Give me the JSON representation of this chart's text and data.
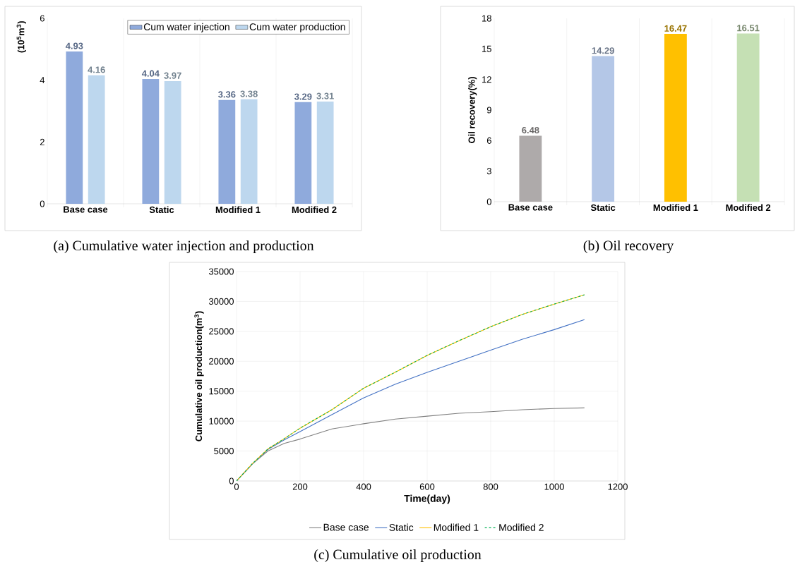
{
  "chart_data": [
    {
      "type": "bar",
      "ylabel": "(10$^{5}$m$^{3}$)",
      "categories": [
        "Base case",
        "Static",
        "Modified 1",
        "Modified 2"
      ],
      "series": [
        {
          "name": "Cum water injection",
          "color": "#8faadc",
          "values": [
            4.93,
            4.04,
            3.36,
            3.29
          ]
        },
        {
          "name": "Cum water production",
          "color": "#bdd7ee",
          "values": [
            4.16,
            3.97,
            3.38,
            3.31
          ]
        }
      ],
      "ylim": [
        0,
        6
      ],
      "yticks": [
        0,
        2,
        4,
        6
      ],
      "grid": "x",
      "legend": "top right",
      "data_labels": true,
      "annotations": [
        "(a)  Cumulative  water  injection  and  production"
      ]
    },
    {
      "type": "bar",
      "ylabel": "Oil recovery(%)",
      "categories": [
        "Base case",
        "Static",
        "Modified 1",
        "Modified 2"
      ],
      "values": [
        6.48,
        14.29,
        16.47,
        16.51
      ],
      "colors": [
        "#aeaaaa",
        "#b4c7e7",
        "#ffc000",
        "#c5e0b4"
      ],
      "ylim": [
        0,
        18
      ],
      "yticks": [
        0,
        3,
        6,
        9,
        12,
        15,
        18
      ],
      "grid": "x",
      "data_labels": true,
      "annotations": [
        "(b)  Oil  recovery"
      ]
    },
    {
      "type": "line",
      "xlabel": "Time(day)",
      "ylabel": "Cumulative oil production(m$^{3}$)",
      "x": [
        0,
        50,
        100,
        150,
        200,
        300,
        400,
        500,
        600,
        700,
        800,
        900,
        1000,
        1095
      ],
      "series": [
        {
          "name": "Base case",
          "color": "#808080",
          "line_style": "solid",
          "values": [
            0,
            2840,
            5050,
            6270,
            7000,
            8700,
            9560,
            10340,
            10830,
            11320,
            11570,
            11910,
            12110,
            12210
          ]
        },
        {
          "name": "Static",
          "color": "#4472c4",
          "line_style": "solid",
          "values": [
            0,
            2850,
            5300,
            6860,
            8240,
            11080,
            13870,
            16180,
            18140,
            20000,
            21860,
            23680,
            25290,
            26960
          ]
        },
        {
          "name": "Modified 1",
          "color": "#ffc000",
          "line_style": "solid",
          "values": [
            0,
            2900,
            5400,
            7060,
            8820,
            11910,
            15490,
            18190,
            20980,
            23430,
            25780,
            27840,
            29560,
            31100
          ]
        },
        {
          "name": "Modified 2",
          "color": "#00b050",
          "line_style": "dashed",
          "values": [
            0,
            2900,
            5400,
            7060,
            8820,
            11910,
            15490,
            18190,
            20980,
            23430,
            25780,
            27840,
            29560,
            31100
          ]
        }
      ],
      "xlim": [
        0,
        1200
      ],
      "xticks": [
        0,
        200,
        400,
        600,
        800,
        1000,
        1200
      ],
      "ylim": [
        0,
        35000
      ],
      "yticks": [
        0,
        5000,
        10000,
        15000,
        20000,
        25000,
        30000,
        35000
      ],
      "grid": true,
      "legend": "bottom",
      "marker": "none",
      "annotations": [
        "(c)  Cumulative  oil  production"
      ]
    }
  ]
}
